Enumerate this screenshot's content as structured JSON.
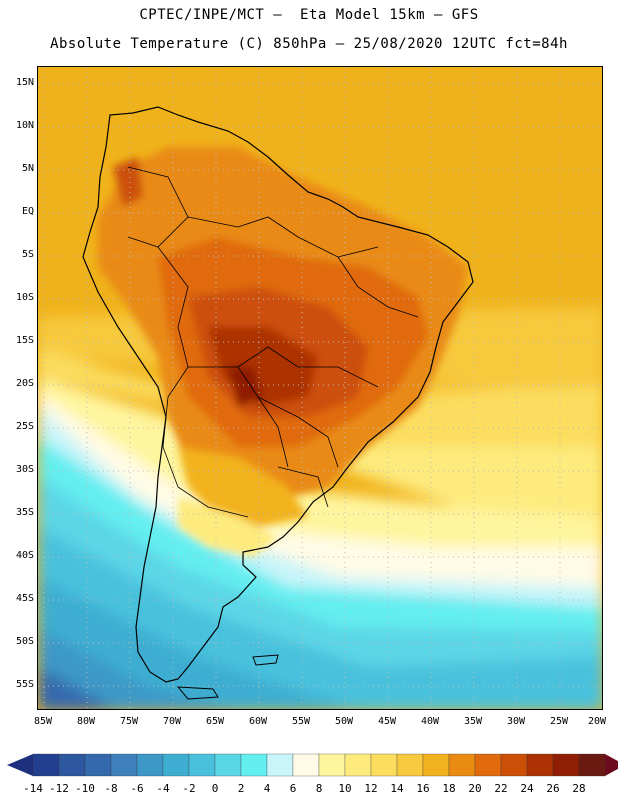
{
  "header": {
    "title_line1": "CPTEC/INPE/MCT –  Eta Model 15km – GFS",
    "title_line2": "Absolute Temperature (C) 850hPa – 25/08/2020 12UTC fct=84h"
  },
  "map": {
    "lat_labels": [
      "15N",
      "10N",
      "5N",
      "EQ",
      "5S",
      "10S",
      "15S",
      "20S",
      "25S",
      "30S",
      "35S",
      "40S",
      "45S",
      "50S",
      "55S"
    ],
    "lon_labels": [
      "85W",
      "80W",
      "75W",
      "70W",
      "65W",
      "60W",
      "55W",
      "50W",
      "45W",
      "40W",
      "35W",
      "30W",
      "25W",
      "20W"
    ],
    "grid": "dotted"
  },
  "colorbar": {
    "labels": [
      "-14",
      "-12",
      "-10",
      "-8",
      "-6",
      "-4",
      "-2",
      "0",
      "2",
      "4",
      "6",
      "8",
      "10",
      "12",
      "14",
      "16",
      "18",
      "20",
      "22",
      "24",
      "26",
      "28"
    ],
    "low_extend_color": "#1e2f7d",
    "high_extend_color": "#6b0c1f",
    "colors": [
      "#22408f",
      "#2d58a0",
      "#3469ad",
      "#3e80bc",
      "#3d98c8",
      "#3daed1",
      "#49c1dd",
      "#5bd6e6",
      "#63eef0",
      "#c8f4fa",
      "#fffbe6",
      "#fff59e",
      "#fdeb7e",
      "#fcdd5e",
      "#f7c93e",
      "#f2b21e",
      "#e98a12",
      "#e06a0c",
      "#cc4f07",
      "#ac3204",
      "#8f1e05",
      "#6a1a10"
    ]
  }
}
